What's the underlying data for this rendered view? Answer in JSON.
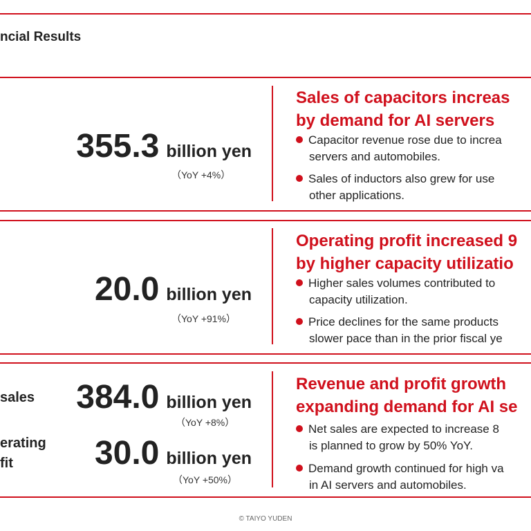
{
  "page_title": "ncial Results",
  "sections": [
    {
      "value": "355.3",
      "unit": "billion yen",
      "yoy": "（YoY +4%）",
      "headline": [
        "Sales of capacitors increas",
        "by demand for AI servers"
      ],
      "bullets": [
        [
          "Capacitor revenue rose due to increa",
          "servers and automobiles."
        ],
        [
          "Sales of inductors also grew for use",
          "other applications."
        ]
      ]
    },
    {
      "value": "20.0",
      "unit": "billion yen",
      "yoy": "（YoY +91%）",
      "headline": [
        "Operating profit increased 9",
        "by higher capacity utilizatio"
      ],
      "bullets": [
        [
          "Higher sales volumes contributed to",
          "capacity utilization."
        ],
        [
          "Price declines for the same products",
          "slower pace than in the prior fiscal ye"
        ]
      ]
    },
    {
      "labels": {
        "sales": "sales",
        "operating": [
          "erating",
          "fit"
        ]
      },
      "value1": "384.0",
      "unit1": "billion yen",
      "yoy1": "（YoY +8%）",
      "value2": "30.0",
      "unit2": "billion yen",
      "yoy2": "（YoY +50%）",
      "headline": [
        "Revenue and profit growth",
        "expanding demand for AI se"
      ],
      "bullets": [
        [
          "Net sales are expected to increase 8",
          "is planned to grow by 50% YoY."
        ],
        [
          "Demand growth continued for high va",
          "in AI servers and automobiles."
        ]
      ]
    }
  ],
  "copyright": "© TAIYO YUDEN",
  "colors": {
    "accent": "#d0101c",
    "text": "#222222"
  }
}
